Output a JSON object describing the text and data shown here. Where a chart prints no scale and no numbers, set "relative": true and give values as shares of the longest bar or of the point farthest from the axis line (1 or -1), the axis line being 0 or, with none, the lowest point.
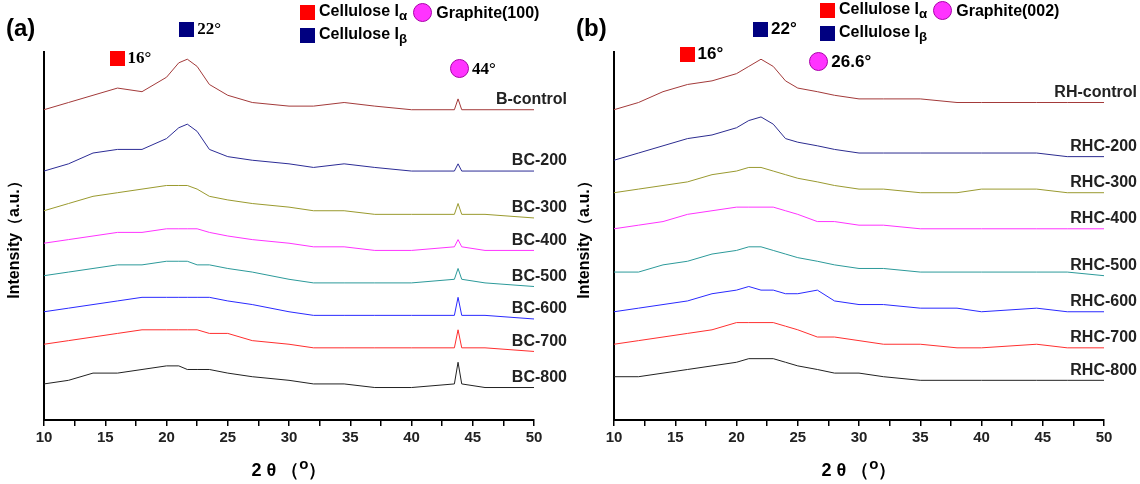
{
  "chart_data": [
    {
      "type": "line",
      "title": "(a)",
      "xlabel": "2 θ （$^{o}$）",
      "ylabel": "Intensity（a.u.）",
      "relative": true,
      "marker": "none",
      "line_style": "solid",
      "tick_labels": "x",
      "xlim": [
        10,
        50
      ],
      "xticks": [
        10,
        {
          "value": 12.5,
          "label": null
        },
        15,
        {
          "value": 17.5,
          "label": null
        },
        20,
        {
          "value": 22.5,
          "label": null
        },
        25,
        {
          "value": 27.5,
          "label": null
        },
        30,
        {
          "value": 32.5,
          "label": null
        },
        35,
        {
          "value": 37.5,
          "label": null
        },
        40,
        {
          "value": 42.5,
          "label": null
        },
        45,
        {
          "value": 47.5,
          "label": null
        },
        50
      ],
      "x": [
        10,
        12,
        14,
        16,
        18,
        20,
        21,
        21.7,
        22.5,
        23.5,
        25,
        27,
        30,
        32,
        34.5,
        37,
        40,
        43.5,
        43.8,
        44.1,
        46,
        50
      ],
      "series": [
        {
          "name": "B-control",
          "color": "#a33a3a",
          "values": [
            0.86,
            0.88,
            0.9,
            0.92,
            0.91,
            0.95,
            0.99,
            1.0,
            0.98,
            0.93,
            0.9,
            0.88,
            0.87,
            0.87,
            0.88,
            0.87,
            0.86,
            0.86,
            0.89,
            0.86,
            0.86,
            0.86
          ]
        },
        {
          "name": "BC-200",
          "color": "#2c2c96",
          "values": [
            0.69,
            0.71,
            0.74,
            0.75,
            0.75,
            0.78,
            0.81,
            0.82,
            0.8,
            0.75,
            0.73,
            0.72,
            0.71,
            0.7,
            0.71,
            0.7,
            0.69,
            0.69,
            0.71,
            0.69,
            0.69,
            0.69
          ]
        },
        {
          "name": "BC-300",
          "color": "#9a9a2e",
          "values": [
            0.58,
            0.6,
            0.62,
            0.63,
            0.64,
            0.65,
            0.65,
            0.65,
            0.64,
            0.62,
            0.61,
            0.6,
            0.59,
            0.58,
            0.58,
            0.57,
            0.57,
            0.57,
            0.6,
            0.57,
            0.57,
            0.56
          ]
        },
        {
          "name": "BC-400",
          "color": "#ff33ff",
          "values": [
            0.49,
            0.5,
            0.51,
            0.52,
            0.52,
            0.53,
            0.53,
            0.53,
            0.53,
            0.52,
            0.51,
            0.5,
            0.49,
            0.48,
            0.48,
            0.47,
            0.47,
            0.48,
            0.5,
            0.48,
            0.47,
            0.47
          ]
        },
        {
          "name": "BC-500",
          "color": "#2c9a9a",
          "values": [
            0.4,
            0.41,
            0.42,
            0.43,
            0.43,
            0.44,
            0.44,
            0.44,
            0.43,
            0.43,
            0.42,
            0.41,
            0.39,
            0.38,
            0.38,
            0.38,
            0.38,
            0.39,
            0.42,
            0.39,
            0.38,
            0.37
          ]
        },
        {
          "name": "BC-600",
          "color": "#2a2aff",
          "values": [
            0.3,
            0.31,
            0.32,
            0.33,
            0.34,
            0.34,
            0.34,
            0.34,
            0.34,
            0.34,
            0.33,
            0.32,
            0.3,
            0.29,
            0.29,
            0.29,
            0.29,
            0.29,
            0.34,
            0.29,
            0.29,
            0.28
          ]
        },
        {
          "name": "BC-700",
          "color": "#ff2e2e",
          "values": [
            0.21,
            0.22,
            0.23,
            0.24,
            0.25,
            0.25,
            0.25,
            0.25,
            0.25,
            0.24,
            0.24,
            0.22,
            0.21,
            0.2,
            0.2,
            0.2,
            0.2,
            0.2,
            0.25,
            0.2,
            0.2,
            0.19
          ]
        },
        {
          "name": "BC-800",
          "color": "#222222",
          "values": [
            0.1,
            0.11,
            0.13,
            0.13,
            0.14,
            0.15,
            0.15,
            0.14,
            0.14,
            0.14,
            0.13,
            0.12,
            0.11,
            0.1,
            0.1,
            0.09,
            0.09,
            0.1,
            0.16,
            0.1,
            0.09,
            0.09
          ]
        }
      ],
      "annotations": [
        {
          "text": "16°",
          "x": 16,
          "y": 0.92
        },
        {
          "text": "22°",
          "x": 21.7,
          "y": 1.0
        },
        {
          "text": "44°",
          "x": 43.8,
          "y": 0.89
        },
        "Cellulose I$_{α}$",
        "Graphite(100)",
        "Cellulose I$_{β}$"
      ]
    },
    {
      "type": "line",
      "title": "(b)",
      "xlabel": "2 θ （$^{o}$）",
      "ylabel": "Intensity（a.u.）",
      "relative": true,
      "marker": "none",
      "line_style": "solid",
      "tick_labels": "x",
      "xlim": [
        10,
        50
      ],
      "xticks": [
        10,
        {
          "value": 12.5,
          "label": null
        },
        15,
        {
          "value": 17.5,
          "label": null
        },
        20,
        {
          "value": 22.5,
          "label": null
        },
        25,
        {
          "value": 27.5,
          "label": null
        },
        30,
        {
          "value": 32.5,
          "label": null
        },
        35,
        {
          "value": 37.5,
          "label": null
        },
        40,
        {
          "value": 42.5,
          "label": null
        },
        45,
        {
          "value": 47.5,
          "label": null
        },
        50
      ],
      "x": [
        10,
        12,
        14,
        16,
        18,
        20,
        21,
        22,
        23,
        24,
        25,
        26.6,
        28,
        30,
        32,
        35,
        38,
        40,
        44.5,
        47,
        50
      ],
      "series": [
        {
          "name": "RH-control",
          "color": "#a33a3a",
          "values": [
            0.86,
            0.88,
            0.91,
            0.93,
            0.94,
            0.96,
            0.98,
            1.0,
            0.98,
            0.94,
            0.92,
            0.91,
            0.9,
            0.89,
            0.89,
            0.89,
            0.88,
            0.88,
            0.88,
            0.88,
            0.88
          ]
        },
        {
          "name": "RHC-200",
          "color": "#2c2c90",
          "values": [
            0.72,
            0.74,
            0.76,
            0.78,
            0.79,
            0.81,
            0.83,
            0.84,
            0.82,
            0.78,
            0.77,
            0.76,
            0.75,
            0.74,
            0.74,
            0.74,
            0.74,
            0.74,
            0.74,
            0.73,
            0.73
          ]
        },
        {
          "name": "RHC-300",
          "color": "#9a9a30",
          "values": [
            0.63,
            0.64,
            0.65,
            0.66,
            0.68,
            0.69,
            0.7,
            0.7,
            0.69,
            0.68,
            0.67,
            0.66,
            0.65,
            0.64,
            0.64,
            0.63,
            0.63,
            0.64,
            0.64,
            0.63,
            0.63
          ]
        },
        {
          "name": "RHC-400",
          "color": "#ff33ff",
          "values": [
            0.53,
            0.54,
            0.55,
            0.57,
            0.58,
            0.59,
            0.59,
            0.59,
            0.59,
            0.58,
            0.57,
            0.55,
            0.55,
            0.54,
            0.54,
            0.53,
            0.53,
            0.53,
            0.53,
            0.53,
            0.53
          ]
        },
        {
          "name": "RHC-500",
          "color": "#2c9a9a",
          "values": [
            0.41,
            0.41,
            0.43,
            0.44,
            0.46,
            0.47,
            0.48,
            0.48,
            0.47,
            0.46,
            0.45,
            0.44,
            0.43,
            0.42,
            0.42,
            0.41,
            0.41,
            0.41,
            0.41,
            0.41,
            0.4
          ]
        },
        {
          "name": "RHC-600",
          "color": "#2a2aff",
          "values": [
            0.3,
            0.31,
            0.32,
            0.33,
            0.35,
            0.36,
            0.37,
            0.36,
            0.36,
            0.35,
            0.35,
            0.36,
            0.33,
            0.32,
            0.32,
            0.31,
            0.31,
            0.3,
            0.31,
            0.3,
            0.3
          ]
        },
        {
          "name": "RHC-700",
          "color": "#ff3030",
          "values": [
            0.21,
            0.22,
            0.23,
            0.24,
            0.25,
            0.27,
            0.27,
            0.27,
            0.27,
            0.26,
            0.25,
            0.23,
            0.23,
            0.22,
            0.21,
            0.21,
            0.2,
            0.2,
            0.21,
            0.2,
            0.2
          ]
        },
        {
          "name": "RHC-800",
          "color": "#222222",
          "values": [
            0.12,
            0.12,
            0.13,
            0.14,
            0.15,
            0.16,
            0.17,
            0.17,
            0.17,
            0.16,
            0.15,
            0.14,
            0.13,
            0.13,
            0.12,
            0.11,
            0.11,
            0.11,
            0.11,
            0.11,
            0.11
          ]
        }
      ],
      "annotations": [
        {
          "text": "16°",
          "x": 16,
          "y": 0.93
        },
        {
          "text": "22°",
          "x": 22,
          "y": 1.0
        },
        {
          "text": "26.6°",
          "x": 26.6,
          "y": 0.91
        },
        "Cellulose I$_{α}$",
        "Graphite(002)",
        "Cellulose I$_{β}$"
      ]
    }
  ]
}
